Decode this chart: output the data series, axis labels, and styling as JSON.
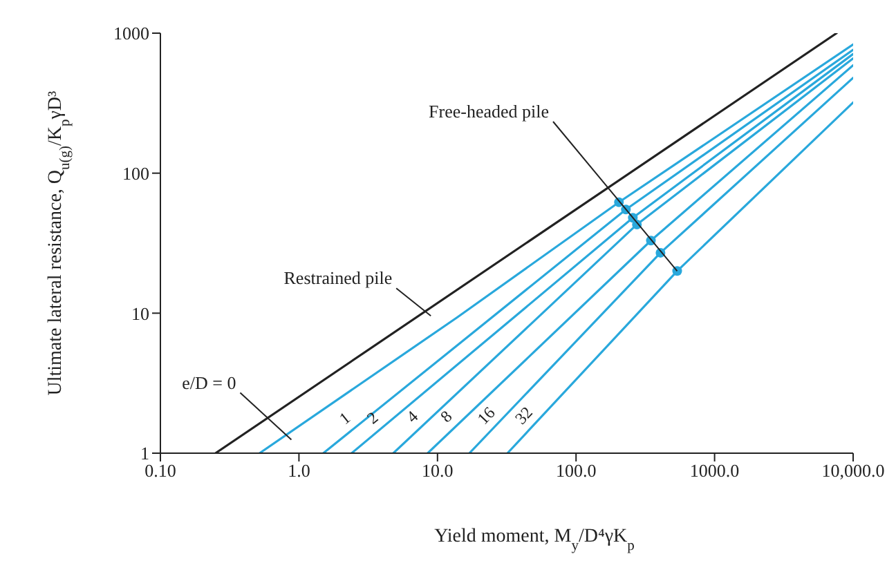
{
  "chart_data": {
    "type": "line",
    "xlabel": "Yield moment, M$_{y}$/D⁴γK$_{p}$",
    "ylabel": "Ultimate lateral resistance, Q$_{u(g)}$/K$_{p}$γD³",
    "log": "xy",
    "xlim": [
      0.1,
      10000
    ],
    "ylim": [
      1,
      1000
    ],
    "xticks": [
      {
        "value": 0.1,
        "label": "0.10"
      },
      {
        "value": 1,
        "label": "1.0"
      },
      {
        "value": 10,
        "label": "10.0"
      },
      {
        "value": 100,
        "label": "100.0"
      },
      {
        "value": 1000,
        "label": "1000.0"
      },
      {
        "value": 10000,
        "label": "10,000.0"
      }
    ],
    "yticks": [
      1,
      10,
      100,
      1000
    ],
    "grid": false,
    "legend": false,
    "marker": "none",
    "line_style": "solid",
    "series": [
      {
        "name": "Restrained pile",
        "color": "#222222",
        "x": [
          0.25,
          7600
        ],
        "values": [
          1,
          1000
        ]
      },
      {
        "name": "e/D = 0",
        "color": "#29a8dc",
        "x": [
          0.52,
          13.8,
          204,
          10000
        ],
        "values": [
          1,
          9.3,
          62,
          830
        ]
      },
      {
        "name": "1",
        "color": "#29a8dc",
        "x": [
          1.5,
          229,
          10000
        ],
        "values": [
          1,
          55,
          760
        ]
      },
      {
        "name": "2",
        "color": "#29a8dc",
        "x": [
          2.4,
          257,
          10000
        ],
        "values": [
          1,
          48,
          710
        ]
      },
      {
        "name": "4",
        "color": "#29a8dc",
        "x": [
          4.8,
          275,
          10000
        ],
        "values": [
          1,
          43,
          660
        ]
      },
      {
        "name": "8",
        "color": "#29a8dc",
        "x": [
          8.5,
          347,
          10000
        ],
        "values": [
          1,
          33,
          590
        ]
      },
      {
        "name": "16",
        "color": "#29a8dc",
        "x": [
          17,
          407,
          10000
        ],
        "values": [
          1,
          27,
          480
        ]
      },
      {
        "name": "32",
        "color": "#29a8dc",
        "x": [
          32,
          537,
          10000
        ],
        "values": [
          1,
          20,
          320
        ]
      },
      {
        "type": "scatter",
        "marker": "circle",
        "color": "#29a8dc",
        "x": [
          204,
          229,
          257,
          275,
          347,
          407,
          537
        ],
        "values": [
          62,
          55,
          48,
          43,
          33,
          27,
          20
        ]
      }
    ],
    "annotations": [
      {
        "text": "Free-headed pile",
        "x": 537,
        "y": 20
      }
    ]
  }
}
